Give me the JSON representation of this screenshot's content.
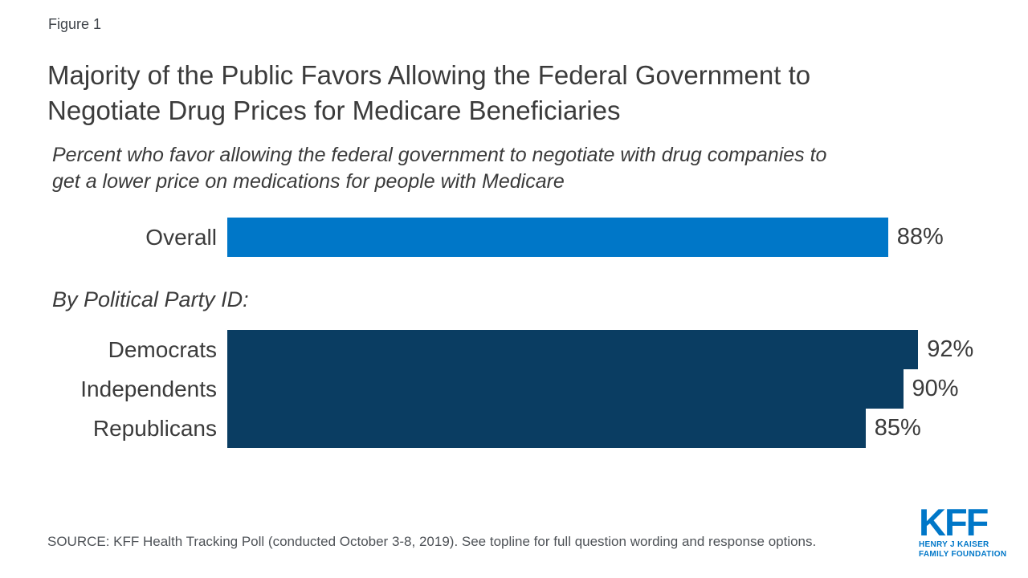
{
  "figure_label": "Figure 1",
  "title": "Majority of the Public Favors Allowing the Federal Government to\nNegotiate Drug Prices for Medicare Beneficiaries",
  "subtitle": "Percent who favor allowing the federal government to negotiate with drug companies to\nget a lower price on medications for people with Medicare",
  "chart_data": {
    "type": "bar",
    "orientation": "horizontal",
    "xlim": [
      0,
      100
    ],
    "value_suffix": "%",
    "group_heading": "By Political Party ID:",
    "bars": [
      {
        "label": "Overall",
        "value": 88,
        "group": "overall"
      },
      {
        "label": "Democrats",
        "value": 92,
        "group": "party"
      },
      {
        "label": "Independents",
        "value": 90,
        "group": "party"
      },
      {
        "label": "Republicans",
        "value": 85,
        "group": "party"
      }
    ],
    "colors": {
      "overall": "#0077c8",
      "party": "#0a3d62"
    },
    "legend": "none",
    "grid": "off"
  },
  "source": "SOURCE: KFF Health Tracking Poll (conducted October 3-8, 2019). See topline for full question wording and response options.",
  "logo": {
    "text": "KFF",
    "subtext": "HENRY J KAISER\nFAMILY FOUNDATION",
    "color": "#0077c8"
  },
  "colors": {
    "accent_blue": "#0077c8",
    "navy": "#0a3d62",
    "text_dark": "#3b3b3b",
    "text_source": "#4e5257",
    "background": "#ffffff"
  }
}
